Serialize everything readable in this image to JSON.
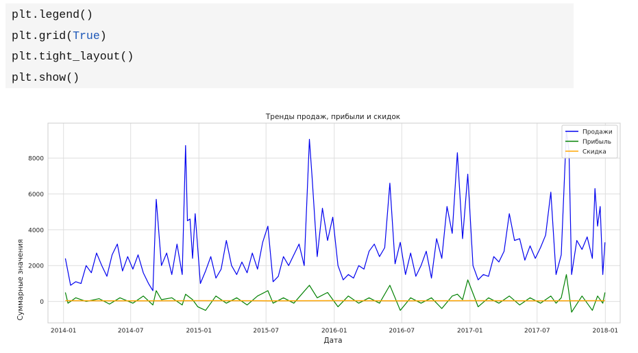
{
  "code": {
    "lines": [
      {
        "before": "plt.legend()",
        "kw": "",
        "after": ""
      },
      {
        "before": "plt.grid(",
        "kw": "True",
        "after": ")"
      },
      {
        "before": "plt.tight_layout()",
        "kw": "",
        "after": ""
      },
      {
        "before": "plt.show()",
        "kw": "",
        "after": ""
      }
    ]
  },
  "colors": {
    "sales": "#0000ee",
    "profit": "#008000",
    "discount": "#ffa500",
    "grid": "#dedede",
    "code_bg": "#f5f5f5",
    "keyword": "#1d57b8"
  },
  "chart_data": {
    "type": "line",
    "title": "Тренды продаж, прибыли и скидок",
    "xlabel": "Дата",
    "ylabel": "Суммарные значения",
    "xlim": [
      "2013-11-20",
      "2018-02-10"
    ],
    "ylim": [
      -1200,
      9950
    ],
    "grid": true,
    "legend_position": "upper right",
    "x_ticks": [
      "2014-01",
      "2014-07",
      "2015-01",
      "2015-07",
      "2016-01",
      "2016-07",
      "2017-01",
      "2017-07",
      "2018-01"
    ],
    "y_ticks": [
      0,
      2000,
      4000,
      6000,
      8000
    ],
    "series": [
      {
        "name": "Продажи",
        "color": "#0000ee",
        "points": [
          [
            "2014-01-06",
            2400
          ],
          [
            "2014-01-20",
            900
          ],
          [
            "2014-02-03",
            1100
          ],
          [
            "2014-02-17",
            1000
          ],
          [
            "2014-03-03",
            2000
          ],
          [
            "2014-03-17",
            1600
          ],
          [
            "2014-03-31",
            2700
          ],
          [
            "2014-04-14",
            2000
          ],
          [
            "2014-04-28",
            1400
          ],
          [
            "2014-05-12",
            2600
          ],
          [
            "2014-05-26",
            3200
          ],
          [
            "2014-06-09",
            1700
          ],
          [
            "2014-06-23",
            2500
          ],
          [
            "2014-07-07",
            1800
          ],
          [
            "2014-07-21",
            2600
          ],
          [
            "2014-08-04",
            1600
          ],
          [
            "2014-08-18",
            1000
          ],
          [
            "2014-08-30",
            600
          ],
          [
            "2014-09-08",
            5700
          ],
          [
            "2014-09-22",
            2000
          ],
          [
            "2014-10-06",
            2700
          ],
          [
            "2014-10-20",
            1500
          ],
          [
            "2014-11-03",
            3200
          ],
          [
            "2014-11-17",
            1500
          ],
          [
            "2014-11-26",
            8700
          ],
          [
            "2014-12-01",
            4500
          ],
          [
            "2014-12-08",
            4600
          ],
          [
            "2014-12-15",
            2400
          ],
          [
            "2014-12-22",
            4900
          ],
          [
            "2015-01-05",
            1000
          ],
          [
            "2015-01-19",
            1700
          ],
          [
            "2015-02-02",
            2500
          ],
          [
            "2015-02-16",
            1300
          ],
          [
            "2015-03-02",
            1800
          ],
          [
            "2015-03-16",
            3400
          ],
          [
            "2015-03-30",
            2000
          ],
          [
            "2015-04-13",
            1500
          ],
          [
            "2015-04-27",
            2200
          ],
          [
            "2015-05-11",
            1600
          ],
          [
            "2015-05-25",
            2700
          ],
          [
            "2015-06-08",
            1800
          ],
          [
            "2015-06-22",
            3300
          ],
          [
            "2015-07-06",
            4200
          ],
          [
            "2015-07-20",
            1100
          ],
          [
            "2015-08-03",
            1400
          ],
          [
            "2015-08-17",
            2500
          ],
          [
            "2015-08-31",
            2000
          ],
          [
            "2015-09-14",
            2600
          ],
          [
            "2015-09-28",
            3200
          ],
          [
            "2015-10-12",
            2000
          ],
          [
            "2015-10-26",
            9050
          ],
          [
            "2015-11-02",
            7000
          ],
          [
            "2015-11-16",
            2500
          ],
          [
            "2015-11-30",
            5200
          ],
          [
            "2015-12-14",
            3400
          ],
          [
            "2015-12-28",
            4700
          ],
          [
            "2016-01-11",
            2000
          ],
          [
            "2016-01-25",
            1200
          ],
          [
            "2016-02-08",
            1500
          ],
          [
            "2016-02-22",
            1300
          ],
          [
            "2016-03-07",
            2000
          ],
          [
            "2016-03-21",
            1800
          ],
          [
            "2016-04-04",
            2800
          ],
          [
            "2016-04-18",
            3200
          ],
          [
            "2016-05-02",
            2500
          ],
          [
            "2016-05-16",
            3000
          ],
          [
            "2016-05-30",
            6600
          ],
          [
            "2016-06-13",
            2100
          ],
          [
            "2016-06-27",
            3300
          ],
          [
            "2016-07-11",
            1500
          ],
          [
            "2016-07-25",
            2700
          ],
          [
            "2016-08-08",
            1400
          ],
          [
            "2016-08-22",
            2000
          ],
          [
            "2016-09-05",
            2800
          ],
          [
            "2016-09-19",
            1300
          ],
          [
            "2016-10-03",
            3500
          ],
          [
            "2016-10-17",
            2400
          ],
          [
            "2016-10-31",
            5300
          ],
          [
            "2016-11-14",
            3800
          ],
          [
            "2016-11-28",
            8300
          ],
          [
            "2016-12-12",
            3500
          ],
          [
            "2016-12-26",
            7100
          ],
          [
            "2017-01-09",
            2000
          ],
          [
            "2017-01-23",
            1200
          ],
          [
            "2017-02-06",
            1500
          ],
          [
            "2017-02-20",
            1400
          ],
          [
            "2017-03-06",
            2500
          ],
          [
            "2017-03-20",
            2200
          ],
          [
            "2017-04-03",
            2800
          ],
          [
            "2017-04-17",
            4900
          ],
          [
            "2017-05-01",
            3400
          ],
          [
            "2017-05-15",
            3500
          ],
          [
            "2017-05-29",
            2300
          ],
          [
            "2017-06-12",
            3100
          ],
          [
            "2017-06-26",
            2400
          ],
          [
            "2017-07-10",
            3000
          ],
          [
            "2017-07-24",
            3700
          ],
          [
            "2017-08-07",
            6100
          ],
          [
            "2017-08-21",
            1500
          ],
          [
            "2017-09-04",
            2600
          ],
          [
            "2017-09-18",
            9500
          ],
          [
            "2017-09-25",
            8400
          ],
          [
            "2017-10-02",
            1500
          ],
          [
            "2017-10-16",
            3400
          ],
          [
            "2017-10-30",
            2900
          ],
          [
            "2017-11-13",
            3600
          ],
          [
            "2017-11-27",
            2400
          ],
          [
            "2017-12-04",
            6300
          ],
          [
            "2017-12-11",
            4200
          ],
          [
            "2017-12-18",
            5300
          ],
          [
            "2017-12-25",
            1500
          ],
          [
            "2017-12-31",
            3300
          ]
        ]
      },
      {
        "name": "Прибыль",
        "color": "#008000",
        "points": [
          [
            "2014-01-06",
            500
          ],
          [
            "2014-01-13",
            -100
          ],
          [
            "2014-02-03",
            200
          ],
          [
            "2014-03-03",
            0
          ],
          [
            "2014-04-07",
            150
          ],
          [
            "2014-05-05",
            -150
          ],
          [
            "2014-06-02",
            200
          ],
          [
            "2014-07-07",
            -100
          ],
          [
            "2014-08-04",
            300
          ],
          [
            "2014-08-30",
            -200
          ],
          [
            "2014-09-08",
            600
          ],
          [
            "2014-09-22",
            100
          ],
          [
            "2014-10-20",
            200
          ],
          [
            "2014-11-17",
            -200
          ],
          [
            "2014-11-26",
            400
          ],
          [
            "2014-12-15",
            100
          ],
          [
            "2014-12-29",
            -300
          ],
          [
            "2015-01-19",
            -500
          ],
          [
            "2015-02-16",
            300
          ],
          [
            "2015-03-16",
            -100
          ],
          [
            "2015-04-13",
            200
          ],
          [
            "2015-05-11",
            -200
          ],
          [
            "2015-06-08",
            300
          ],
          [
            "2015-07-06",
            600
          ],
          [
            "2015-07-20",
            -100
          ],
          [
            "2015-08-17",
            200
          ],
          [
            "2015-09-14",
            -100
          ],
          [
            "2015-10-26",
            900
          ],
          [
            "2015-11-16",
            200
          ],
          [
            "2015-12-14",
            500
          ],
          [
            "2016-01-11",
            -300
          ],
          [
            "2016-02-08",
            300
          ],
          [
            "2016-03-07",
            -100
          ],
          [
            "2016-04-04",
            200
          ],
          [
            "2016-05-02",
            -100
          ],
          [
            "2016-05-30",
            900
          ],
          [
            "2016-06-27",
            -500
          ],
          [
            "2016-07-25",
            200
          ],
          [
            "2016-08-22",
            -100
          ],
          [
            "2016-09-19",
            200
          ],
          [
            "2016-10-17",
            -400
          ],
          [
            "2016-11-14",
            300
          ],
          [
            "2016-11-28",
            400
          ],
          [
            "2016-12-12",
            100
          ],
          [
            "2016-12-26",
            1200
          ],
          [
            "2017-01-23",
            -300
          ],
          [
            "2017-02-20",
            200
          ],
          [
            "2017-03-20",
            -100
          ],
          [
            "2017-04-17",
            300
          ],
          [
            "2017-05-15",
            -200
          ],
          [
            "2017-06-12",
            200
          ],
          [
            "2017-07-10",
            -100
          ],
          [
            "2017-08-07",
            300
          ],
          [
            "2017-08-21",
            -100
          ],
          [
            "2017-09-04",
            200
          ],
          [
            "2017-09-18",
            1500
          ],
          [
            "2017-10-02",
            -600
          ],
          [
            "2017-10-30",
            300
          ],
          [
            "2017-11-27",
            -500
          ],
          [
            "2017-12-11",
            300
          ],
          [
            "2017-12-25",
            -100
          ],
          [
            "2017-12-31",
            500
          ]
        ]
      },
      {
        "name": "Скидка",
        "color": "#ffa500",
        "points": [
          [
            "2014-01-06",
            40
          ],
          [
            "2014-07-07",
            35
          ],
          [
            "2015-01-05",
            40
          ],
          [
            "2015-07-06",
            35
          ],
          [
            "2016-01-04",
            40
          ],
          [
            "2016-07-04",
            35
          ],
          [
            "2017-01-02",
            40
          ],
          [
            "2017-07-03",
            35
          ],
          [
            "2017-12-31",
            40
          ]
        ]
      }
    ]
  }
}
